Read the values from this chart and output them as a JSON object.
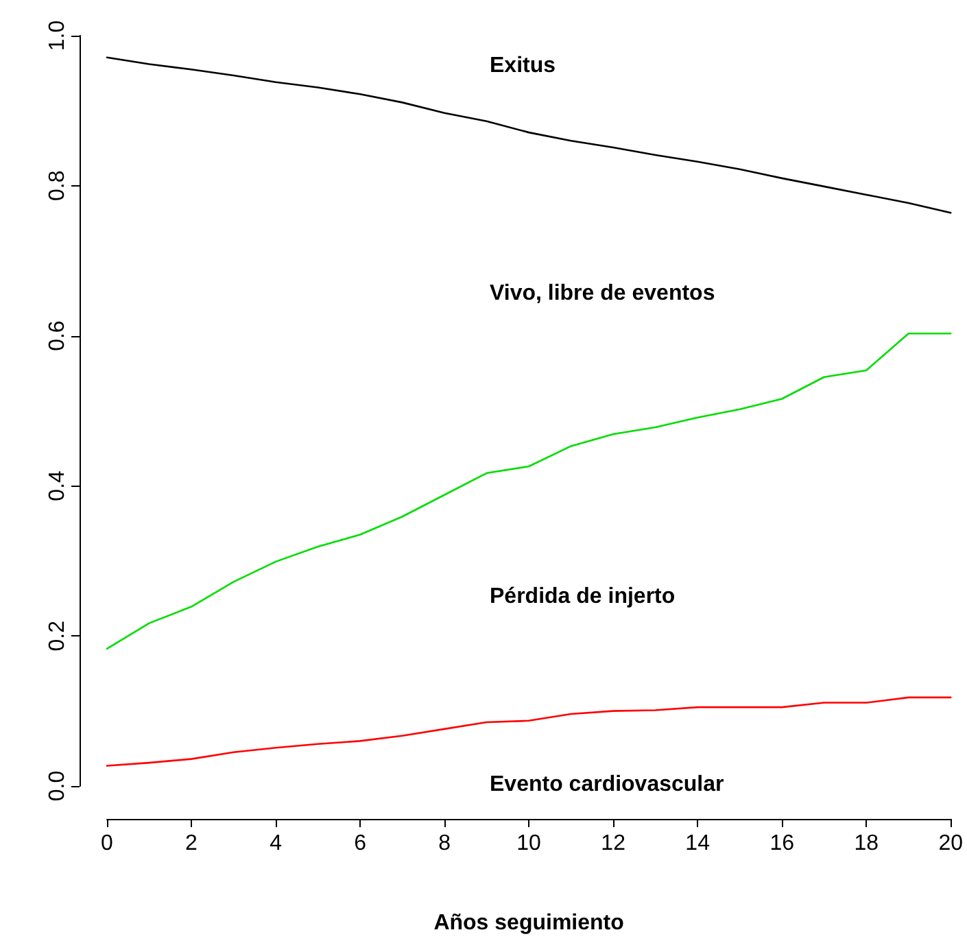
{
  "chart_data": {
    "type": "line",
    "xlabel": "Años seguimiento",
    "x": [
      0,
      1,
      2,
      3,
      4,
      5,
      6,
      7,
      8,
      9,
      10,
      11,
      12,
      13,
      14,
      15,
      16,
      17,
      18,
      19,
      20
    ],
    "series": [
      {
        "color": "#000000",
        "values": [
          0.971,
          0.962,
          0.955,
          0.947,
          0.938,
          0.931,
          0.922,
          0.911,
          0.897,
          0.886,
          0.871,
          0.86,
          0.851,
          0.841,
          0.832,
          0.822,
          0.81,
          0.799,
          0.788,
          0.777,
          0.764
        ]
      },
      {
        "color": "#00dd00",
        "values": [
          0.183,
          0.217,
          0.239,
          0.272,
          0.299,
          0.319,
          0.335,
          0.359,
          0.388,
          0.417,
          0.426,
          0.453,
          0.469,
          0.478,
          0.491,
          0.502,
          0.516,
          0.545,
          0.554,
          0.603,
          0.603
        ]
      },
      {
        "color": "#ff0000",
        "values": [
          0.027,
          0.031,
          0.036,
          0.045,
          0.051,
          0.056,
          0.06,
          0.067,
          0.076,
          0.085,
          0.087,
          0.096,
          0.1,
          0.101,
          0.105,
          0.105,
          0.105,
          0.111,
          0.111,
          0.118,
          0.118
        ]
      }
    ],
    "annotations": [
      "Exitus",
      "Vivo, libre de eventos",
      "Pérdida de injerto",
      "Evento cardiovascular"
    ],
    "xlim": [
      0,
      20
    ],
    "xticks": [
      0,
      2,
      4,
      6,
      8,
      10,
      12,
      14,
      16,
      18,
      20
    ],
    "ylim": [
      0,
      1
    ],
    "yticks": [
      {
        "value": 0,
        "label": "0.0"
      },
      {
        "value": 0.2,
        "label": "0.2"
      },
      {
        "value": 0.4,
        "label": "0.4"
      },
      {
        "value": 0.6,
        "label": "0.6"
      },
      {
        "value": 0.8,
        "label": "0.8"
      },
      {
        "value": 1,
        "label": "1.0"
      }
    ],
    "grid": false,
    "marker": "none",
    "line_style": "solid"
  }
}
